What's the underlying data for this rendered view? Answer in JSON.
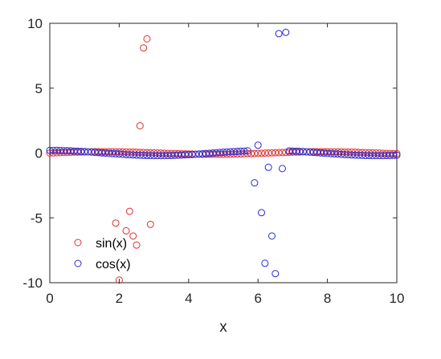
{
  "chart_data": {
    "type": "scatter",
    "xlabel": "x",
    "ylabel": "",
    "title": "",
    "xlim": [
      0,
      10
    ],
    "ylim": [
      -10,
      10
    ],
    "xticks": [
      0,
      2,
      4,
      6,
      8,
      10
    ],
    "yticks": [
      -10,
      -5,
      0,
      5,
      10
    ],
    "xtick_labels": [
      "0",
      "2",
      "4",
      "6",
      "8",
      "10"
    ],
    "ytick_labels": [
      "-10",
      "-5",
      "0",
      "5",
      "10"
    ],
    "grid": false,
    "box": true,
    "legend": {
      "position": "bottom-left"
    },
    "series": [
      {
        "name": "sin(x)",
        "color": "#e03030",
        "marker": "open-circle",
        "x": [
          0,
          0.1,
          0.2,
          0.3,
          0.4,
          0.5,
          0.6,
          0.7,
          0.8,
          0.9,
          1.0,
          1.1,
          1.2,
          1.3,
          1.4,
          1.5,
          1.6,
          1.7,
          1.8,
          1.9,
          2.0,
          2.1,
          2.2,
          2.3,
          2.4,
          2.5,
          2.6,
          2.7,
          2.8,
          2.9,
          3.0,
          3.1,
          3.2,
          3.3,
          3.4,
          3.5,
          3.6,
          3.7,
          3.8,
          3.9,
          4.0,
          4.1,
          4.2,
          4.3,
          4.4,
          4.5,
          4.6,
          4.7,
          4.8,
          4.9,
          5.0,
          5.1,
          5.2,
          5.3,
          5.4,
          5.5,
          5.6,
          5.7,
          5.8,
          5.9,
          6.0,
          6.1,
          6.2,
          6.3,
          6.4,
          6.5,
          6.6,
          6.7,
          6.8,
          6.9,
          7.0,
          7.1,
          7.2,
          7.3,
          7.4,
          7.5,
          7.6,
          7.7,
          7.8,
          7.9,
          8.0,
          8.1,
          8.2,
          8.3,
          8.4,
          8.5,
          8.6,
          8.7,
          8.8,
          8.9,
          9.0,
          9.1,
          9.2,
          9.3,
          9.4,
          9.5,
          9.6,
          9.7,
          9.8,
          9.9,
          10.0,
          1.9,
          2.0,
          2.2,
          2.3,
          2.4,
          2.5,
          2.6,
          2.7,
          2.8,
          2.9
        ],
        "y": [
          0,
          0.01,
          0.02,
          0.03,
          0.04,
          0.05,
          0.06,
          0.07,
          0.07,
          0.08,
          0.08,
          0.09,
          0.09,
          0.1,
          0.1,
          0.1,
          0.1,
          0.1,
          0.1,
          0.09,
          0.09,
          0.09,
          0.08,
          0.07,
          0.07,
          0.06,
          0.05,
          0.04,
          0.03,
          0.02,
          0.01,
          0,
          -0.01,
          -0.02,
          -0.03,
          -0.04,
          -0.04,
          -0.05,
          -0.06,
          -0.07,
          -0.08,
          -0.08,
          -0.09,
          -0.09,
          -0.1,
          -0.1,
          -0.1,
          -0.1,
          -0.1,
          -0.1,
          -0.1,
          -0.09,
          -0.09,
          -0.08,
          -0.08,
          -0.07,
          -0.06,
          -0.05,
          -0.05,
          -0.04,
          -0.03,
          -0.02,
          -0.01,
          0,
          0.01,
          0.02,
          0.03,
          0.04,
          0.05,
          0.06,
          0.07,
          0.07,
          0.08,
          0.09,
          0.09,
          0.09,
          0.1,
          0.1,
          0.1,
          0.1,
          0.1,
          0.1,
          0.09,
          0.09,
          0.09,
          0.08,
          0.07,
          0.07,
          0.06,
          0.05,
          0.04,
          0.03,
          0.02,
          0.01,
          0,
          -0.01,
          -0.02,
          -0.03,
          -0.04,
          -0.05,
          -0.05,
          -5.4,
          -9.8,
          -6.0,
          -4.5,
          -6.4,
          -7.1,
          2.1,
          8.1,
          8.8,
          -5.5
        ]
      },
      {
        "name": "cos(x)",
        "color": "#2a2ad0",
        "marker": "open-circle",
        "x": [
          0,
          0.1,
          0.2,
          0.3,
          0.4,
          0.5,
          0.6,
          0.7,
          0.8,
          0.9,
          1.0,
          1.1,
          1.2,
          1.3,
          1.4,
          1.5,
          1.6,
          1.7,
          1.8,
          1.9,
          2.0,
          2.1,
          2.2,
          2.3,
          2.4,
          2.5,
          2.6,
          2.7,
          2.8,
          2.9,
          3.0,
          3.1,
          3.2,
          3.3,
          3.4,
          3.5,
          3.6,
          3.7,
          3.8,
          3.9,
          4.0,
          4.1,
          4.2,
          4.3,
          4.4,
          4.5,
          4.6,
          4.7,
          4.8,
          4.9,
          5.0,
          5.1,
          5.2,
          5.3,
          5.4,
          5.5,
          5.6,
          5.7,
          6.9,
          7.0,
          7.1,
          7.2,
          7.3,
          7.4,
          7.5,
          7.6,
          7.7,
          7.8,
          7.9,
          8.0,
          8.1,
          8.2,
          8.3,
          8.4,
          8.5,
          8.6,
          8.7,
          8.8,
          8.9,
          9.0,
          9.1,
          9.2,
          9.3,
          9.4,
          9.5,
          9.6,
          9.7,
          9.8,
          9.9,
          10.0,
          5.9,
          6.0,
          6.1,
          6.2,
          6.3,
          6.4,
          6.5,
          6.6,
          6.7,
          6.8
        ],
        "y": [
          0.2,
          0.2,
          0.2,
          0.19,
          0.18,
          0.18,
          0.17,
          0.15,
          0.14,
          0.12,
          0.11,
          0.09,
          0.07,
          0.05,
          0.03,
          0.01,
          -0.01,
          -0.03,
          -0.05,
          -0.06,
          -0.08,
          -0.1,
          -0.12,
          -0.13,
          -0.15,
          -0.16,
          -0.17,
          -0.18,
          -0.19,
          -0.19,
          -0.2,
          -0.2,
          -0.2,
          -0.2,
          -0.19,
          -0.19,
          -0.18,
          -0.17,
          -0.16,
          -0.14,
          -0.13,
          -0.12,
          -0.1,
          -0.08,
          -0.06,
          -0.04,
          -0.02,
          0,
          0.02,
          0.04,
          0.06,
          0.08,
          0.09,
          0.11,
          0.12,
          0.14,
          0.15,
          0.17,
          0.16,
          0.15,
          0.14,
          0.12,
          0.11,
          0.09,
          0.07,
          0.05,
          0.03,
          0.01,
          -0.01,
          -0.03,
          -0.05,
          -0.07,
          -0.08,
          -0.1,
          -0.12,
          -0.13,
          -0.15,
          -0.16,
          -0.17,
          -0.18,
          -0.19,
          -0.19,
          -0.2,
          -0.2,
          -0.2,
          -0.2,
          -0.19,
          -0.19,
          -0.18,
          -0.17,
          -2.3,
          0.6,
          -4.6,
          -8.5,
          -1.1,
          -6.4,
          -9.3,
          9.2,
          -1.2,
          9.3
        ]
      }
    ]
  }
}
